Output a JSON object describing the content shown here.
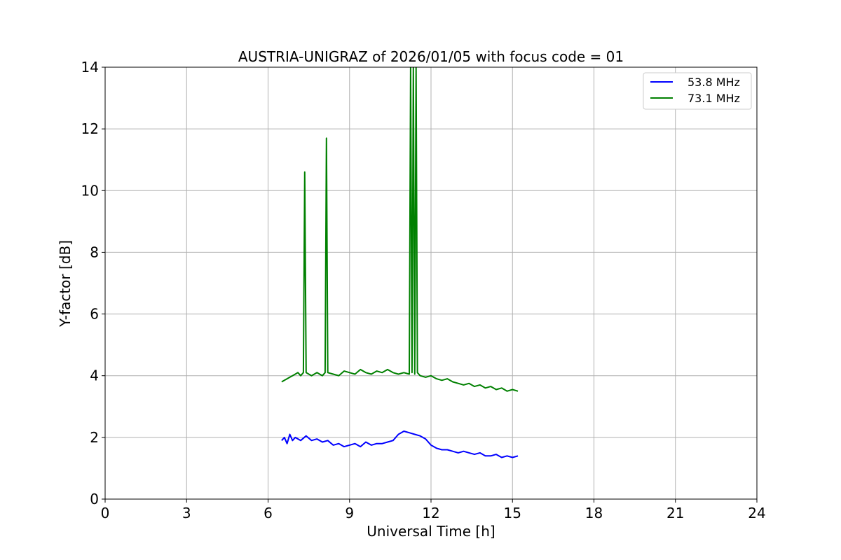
{
  "chart_data": {
    "type": "line",
    "title": "AUSTRIA-UNIGRAZ of 2026/01/05 with focus code = 01",
    "xlabel": "Universal Time [h]",
    "ylabel": "Y-factor [dB]",
    "xlim": [
      0,
      24
    ],
    "ylim": [
      0,
      14
    ],
    "xticks": [
      0,
      3,
      6,
      9,
      12,
      15,
      18,
      21,
      24
    ],
    "yticks": [
      0,
      2,
      4,
      6,
      8,
      10,
      12,
      14
    ],
    "grid": true,
    "legend_position": "top-right",
    "series": [
      {
        "name": "53.8 MHz",
        "color": "#0000ff",
        "x": [
          6.5,
          6.6,
          6.7,
          6.8,
          6.9,
          7.0,
          7.2,
          7.4,
          7.6,
          7.8,
          8.0,
          8.2,
          8.4,
          8.6,
          8.8,
          9.0,
          9.2,
          9.4,
          9.6,
          9.8,
          10.0,
          10.2,
          10.4,
          10.6,
          10.8,
          11.0,
          11.2,
          11.4,
          11.6,
          11.8,
          12.0,
          12.2,
          12.4,
          12.6,
          12.8,
          13.0,
          13.2,
          13.4,
          13.6,
          13.8,
          14.0,
          14.2,
          14.4,
          14.6,
          14.8,
          15.0,
          15.2
        ],
        "y": [
          1.9,
          2.0,
          1.8,
          2.1,
          1.9,
          2.0,
          1.9,
          2.05,
          1.9,
          1.95,
          1.85,
          1.9,
          1.75,
          1.8,
          1.7,
          1.75,
          1.8,
          1.7,
          1.85,
          1.75,
          1.8,
          1.8,
          1.85,
          1.9,
          2.1,
          2.2,
          2.15,
          2.1,
          2.05,
          1.95,
          1.75,
          1.65,
          1.6,
          1.6,
          1.55,
          1.5,
          1.55,
          1.5,
          1.45,
          1.5,
          1.4,
          1.4,
          1.45,
          1.35,
          1.4,
          1.35,
          1.4
        ]
      },
      {
        "name": "73.1 MHz",
        "color": "#008000",
        "x": [
          6.5,
          6.6,
          6.7,
          6.8,
          6.9,
          7.0,
          7.1,
          7.2,
          7.3,
          7.35,
          7.4,
          7.6,
          7.8,
          7.9,
          8.0,
          8.1,
          8.15,
          8.2,
          8.4,
          8.6,
          8.8,
          9.0,
          9.2,
          9.4,
          9.6,
          9.8,
          10.0,
          10.2,
          10.4,
          10.6,
          10.8,
          11.0,
          11.2,
          11.25,
          11.3,
          11.35,
          11.4,
          11.45,
          11.5,
          11.6,
          11.8,
          12.0,
          12.2,
          12.4,
          12.6,
          12.8,
          13.0,
          13.2,
          13.4,
          13.6,
          13.8,
          14.0,
          14.2,
          14.4,
          14.6,
          14.8,
          15.0,
          15.2
        ],
        "y": [
          3.8,
          3.85,
          3.9,
          3.95,
          4.0,
          4.05,
          4.1,
          4.0,
          4.1,
          10.6,
          4.1,
          4.0,
          4.1,
          4.05,
          4.0,
          4.1,
          11.7,
          4.1,
          4.05,
          4.0,
          4.15,
          4.1,
          4.05,
          4.2,
          4.1,
          4.05,
          4.15,
          4.1,
          4.2,
          4.1,
          4.05,
          4.1,
          4.05,
          14.0,
          4.1,
          14.0,
          4.05,
          14.0,
          4.1,
          4.0,
          3.95,
          4.0,
          3.9,
          3.85,
          3.9,
          3.8,
          3.75,
          3.7,
          3.75,
          3.65,
          3.7,
          3.6,
          3.65,
          3.55,
          3.6,
          3.5,
          3.55,
          3.5
        ]
      }
    ]
  }
}
